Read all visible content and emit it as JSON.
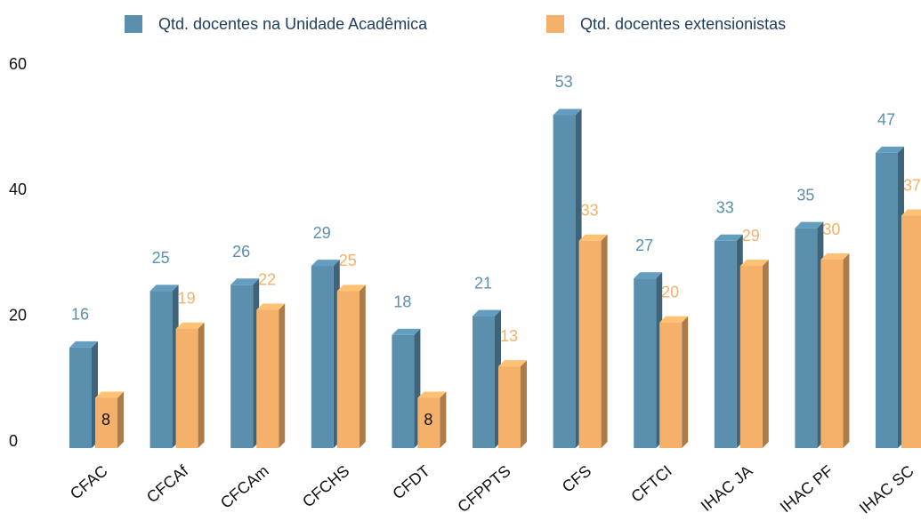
{
  "chart_data": {
    "type": "bar",
    "categories": [
      "CFAC",
      "CFCAf",
      "CFCAm",
      "CFCHS",
      "CFDT",
      "CFPPTS",
      "CFS",
      "CFTCI",
      "IHAC JA",
      "IHAC PF",
      "IHAC SC"
    ],
    "series": [
      {
        "name": "Qtd. docentes na Unidade Acadêmica",
        "color": "#5a8fae",
        "values": [
          16,
          25,
          26,
          29,
          18,
          21,
          53,
          27,
          33,
          35,
          47
        ]
      },
      {
        "name": "Qtd. docentes extensionistas",
        "color": "#f5b06a",
        "values": [
          8,
          19,
          22,
          25,
          8,
          13,
          33,
          20,
          29,
          30,
          37
        ]
      }
    ],
    "ylim": [
      0,
      60
    ],
    "yticks": [
      0,
      20,
      40,
      60
    ],
    "grid": false,
    "legend": "top"
  }
}
